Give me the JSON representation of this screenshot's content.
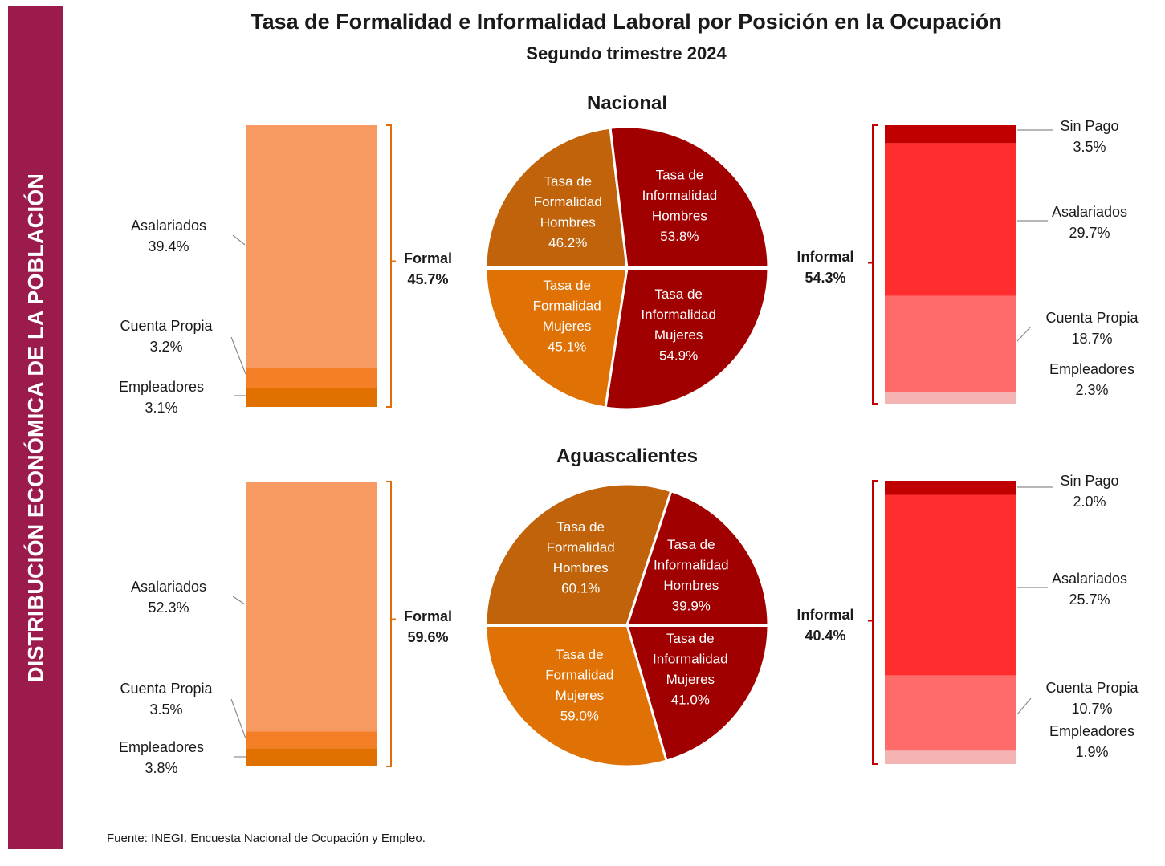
{
  "side_banner": "DISTRIBUCIÓN ECONÓMICA DE LA POBLACIÓN",
  "title": "Tasa de Formalidad e Informalidad Laboral por Posición en la Ocupación",
  "subtitle": "Segundo trimestre 2024",
  "source": "Fuente: INEGI. Encuesta Nacional de Ocupación y Empleo.",
  "colors": {
    "banner": "#9b1b4d",
    "formal_asalariados": "#f79a62",
    "formal_cuenta_propia": "#f47f27",
    "formal_empleadores": "#e07100",
    "formal_bracket": "#e46d0a",
    "informal_sin_pago": "#c00000",
    "informal_asalariados": "#ff2d2d",
    "informal_cuenta_propia": "#ff6a6a",
    "informal_empleadores": "#f5b3b3",
    "informal_bracket": "#c00000",
    "pie_formal_hombres": "#c0630a",
    "pie_formal_mujeres": "#e07105",
    "pie_informal": "#a00000"
  },
  "panels": [
    {
      "name": "Nacional",
      "formal": {
        "label": "Formal",
        "value_label": "45.7%",
        "value": 45.7,
        "segments": [
          {
            "name": "Asalariados",
            "value": 39.4,
            "value_label": "39.4%"
          },
          {
            "name": "Cuenta Propia",
            "value": 3.2,
            "value_label": "3.2%"
          },
          {
            "name": "Empleadores",
            "value": 3.1,
            "value_label": "3.1%"
          }
        ]
      },
      "informal": {
        "label": "Informal",
        "value_label": "54.3%",
        "value": 54.3,
        "segments": [
          {
            "name": "Sin Pago",
            "value": 3.5,
            "value_label": "3.5%"
          },
          {
            "name": "Asalariados",
            "value": 29.7,
            "value_label": "29.7%"
          },
          {
            "name": "Cuenta Propia",
            "value": 18.7,
            "value_label": "18.7%"
          },
          {
            "name": "Empleadores",
            "value": 2.3,
            "value_label": "2.3%"
          }
        ]
      },
      "pie": {
        "hombres": {
          "formal": 46.2,
          "informal": 53.8
        },
        "mujeres": {
          "formal": 45.1,
          "informal": 54.9
        },
        "labels": {
          "formal_hombres": [
            "Tasa de",
            "Formalidad",
            "Hombres",
            "46.2%"
          ],
          "informal_hombres": [
            "Tasa de",
            "Informalidad",
            "Hombres",
            "53.8%"
          ],
          "formal_mujeres": [
            "Tasa de",
            "Formalidad",
            "Mujeres",
            "45.1%"
          ],
          "informal_mujeres": [
            "Tasa de",
            "Informalidad",
            "Mujeres",
            "54.9%"
          ]
        }
      }
    },
    {
      "name": "Aguascalientes",
      "formal": {
        "label": "Formal",
        "value_label": "59.6%",
        "value": 59.6,
        "segments": [
          {
            "name": "Asalariados",
            "value": 52.3,
            "value_label": "52.3%"
          },
          {
            "name": "Cuenta Propia",
            "value": 3.5,
            "value_label": "3.5%"
          },
          {
            "name": "Empleadores",
            "value": 3.8,
            "value_label": "3.8%"
          }
        ]
      },
      "informal": {
        "label": "Informal",
        "value_label": "40.4%",
        "value": 40.4,
        "segments": [
          {
            "name": "Sin Pago",
            "value": 2.0,
            "value_label": "2.0%"
          },
          {
            "name": "Asalariados",
            "value": 25.7,
            "value_label": "25.7%"
          },
          {
            "name": "Cuenta Propia",
            "value": 10.7,
            "value_label": "10.7%"
          },
          {
            "name": "Empleadores",
            "value": 1.9,
            "value_label": "1.9%"
          }
        ]
      },
      "pie": {
        "hombres": {
          "formal": 60.1,
          "informal": 39.9
        },
        "mujeres": {
          "formal": 59.0,
          "informal": 41.0
        },
        "labels": {
          "formal_hombres": [
            "Tasa de",
            "Formalidad",
            "Hombres",
            "60.1%"
          ],
          "informal_hombres": [
            "Tasa de",
            "Informalidad",
            "Hombres",
            "39.9%"
          ],
          "formal_mujeres": [
            "Tasa de",
            "Formalidad",
            "Mujeres",
            "59.0%"
          ],
          "informal_mujeres": [
            "Tasa de",
            "Informalidad",
            "Mujeres",
            "41.0%"
          ]
        }
      }
    }
  ],
  "chart_data": [
    {
      "type": "bar",
      "title": "Nacional",
      "stacked": true,
      "categories": [
        "Formal"
      ],
      "series": [
        {
          "name": "Asalariados",
          "values": [
            39.4
          ]
        },
        {
          "name": "Cuenta Propia",
          "values": [
            3.2
          ]
        },
        {
          "name": "Empleadores",
          "values": [
            3.1
          ]
        }
      ]
    },
    {
      "type": "pie",
      "title": "Nacional",
      "categories": [
        "Tasa de Formalidad Hombres",
        "Tasa de Informalidad Hombres",
        "Tasa de Formalidad Mujeres",
        "Tasa de Informalidad Mujeres"
      ],
      "values": [
        46.2,
        53.8,
        45.1,
        54.9
      ]
    },
    {
      "type": "bar",
      "title": "Nacional",
      "stacked": true,
      "categories": [
        "Informal"
      ],
      "series": [
        {
          "name": "Sin Pago",
          "values": [
            3.5
          ]
        },
        {
          "name": "Asalariados",
          "values": [
            29.7
          ]
        },
        {
          "name": "Cuenta Propia",
          "values": [
            18.7
          ]
        },
        {
          "name": "Empleadores",
          "values": [
            2.3
          ]
        }
      ]
    },
    {
      "type": "bar",
      "title": "Aguascalientes",
      "stacked": true,
      "categories": [
        "Formal"
      ],
      "series": [
        {
          "name": "Asalariados",
          "values": [
            52.3
          ]
        },
        {
          "name": "Cuenta Propia",
          "values": [
            3.5
          ]
        },
        {
          "name": "Empleadores",
          "values": [
            3.8
          ]
        }
      ]
    },
    {
      "type": "pie",
      "title": "Aguascalientes",
      "categories": [
        "Tasa de Formalidad Hombres",
        "Tasa de Informalidad Hombres",
        "Tasa de Formalidad Mujeres",
        "Tasa de Informalidad Mujeres"
      ],
      "values": [
        60.1,
        39.9,
        59.0,
        41.0
      ]
    },
    {
      "type": "bar",
      "title": "Aguascalientes",
      "stacked": true,
      "categories": [
        "Informal"
      ],
      "series": [
        {
          "name": "Sin Pago",
          "values": [
            2.0
          ]
        },
        {
          "name": "Asalariados",
          "values": [
            25.7
          ]
        },
        {
          "name": "Cuenta Propia",
          "values": [
            10.7
          ]
        },
        {
          "name": "Empleadores",
          "values": [
            1.9
          ]
        }
      ]
    }
  ]
}
